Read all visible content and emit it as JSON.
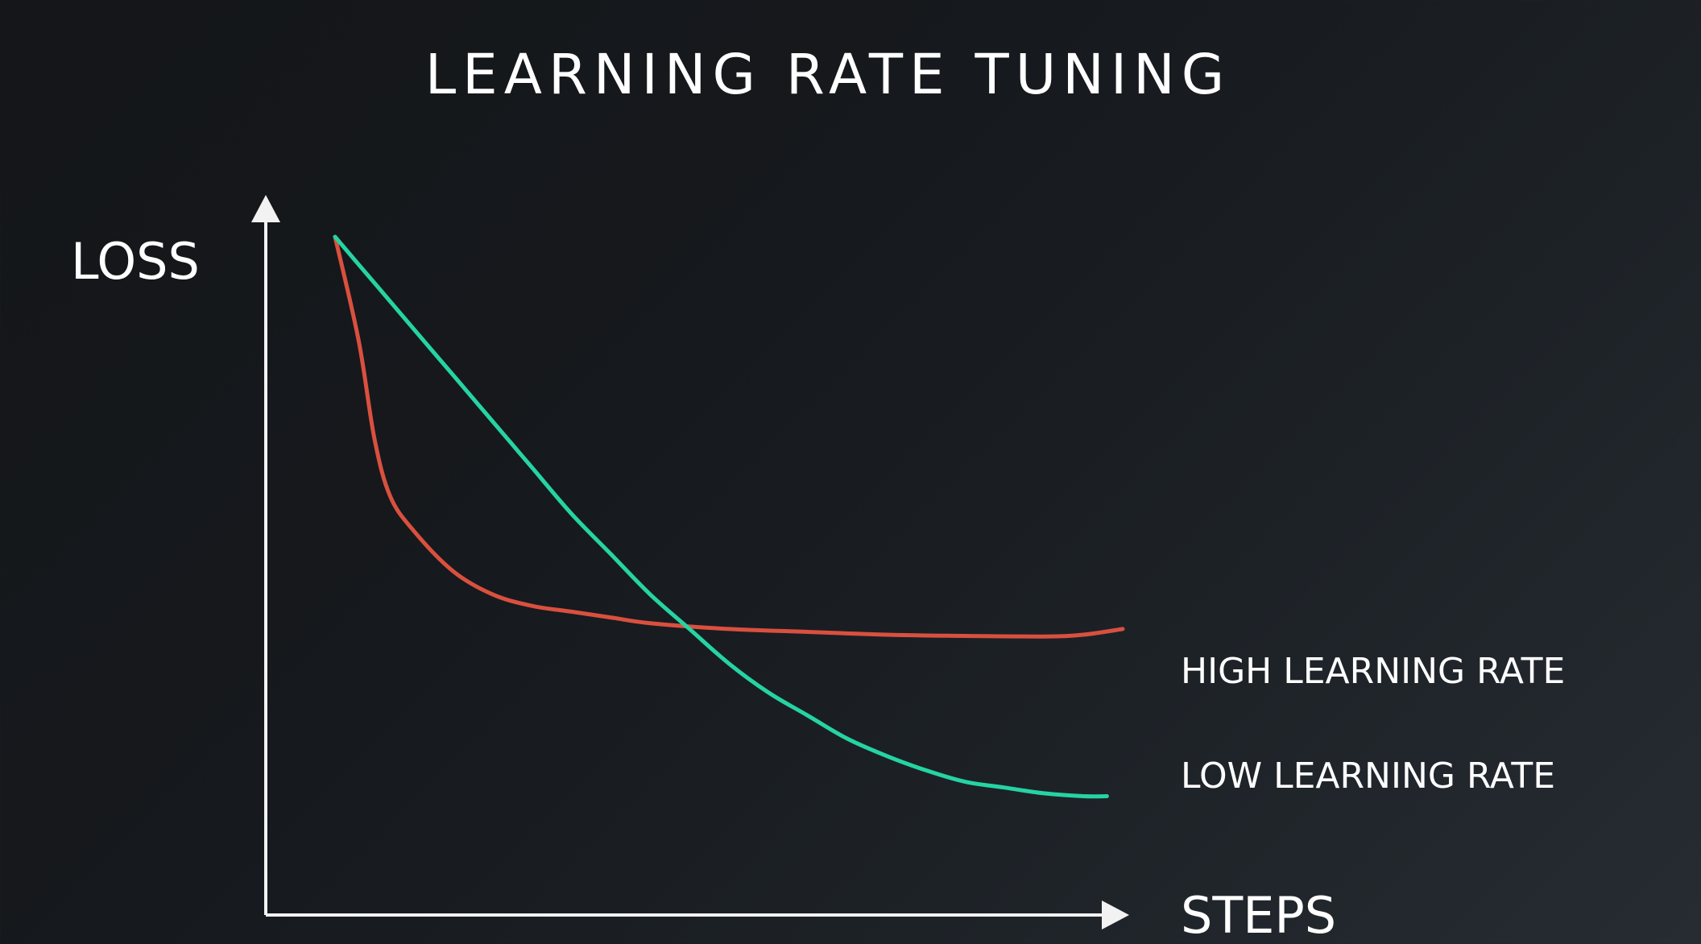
{
  "chart_data": {
    "type": "line",
    "title": "LEARNING RATE TUNING",
    "ylabel": "LOSS",
    "xlabel": "STEPS",
    "xlim": [
      0,
      100
    ],
    "ylim": [
      0,
      100
    ],
    "grid": false,
    "legend": "inline-right",
    "axis_ticks": false,
    "colors": {
      "axis": "#f2f2f2",
      "background": "#17191c"
    },
    "series": [
      {
        "name": "HIGH LEARNING RATE",
        "color": "#d9503f",
        "x": [
          0,
          3,
          5,
          7,
          10,
          15,
          20,
          25,
          30,
          35,
          40,
          50,
          60,
          70,
          80,
          90,
          95,
          100
        ],
        "y": [
          100,
          82,
          65,
          55,
          49,
          42,
          38,
          36,
          35,
          34,
          33,
          32,
          31.5,
          31,
          30.8,
          30.7,
          31,
          32
        ]
      },
      {
        "name": "LOW LEARNING RATE",
        "color": "#26d3a3",
        "x": [
          0,
          5,
          10,
          15,
          20,
          25,
          30,
          35,
          40,
          45,
          50,
          55,
          60,
          65,
          70,
          75,
          80,
          85,
          90,
          95,
          98
        ],
        "y": [
          100,
          92,
          84,
          76,
          68,
          60,
          52,
          45,
          38,
          32,
          26,
          21,
          17,
          13,
          10,
          7.5,
          5.5,
          4.5,
          3.5,
          3,
          3
        ]
      }
    ]
  }
}
